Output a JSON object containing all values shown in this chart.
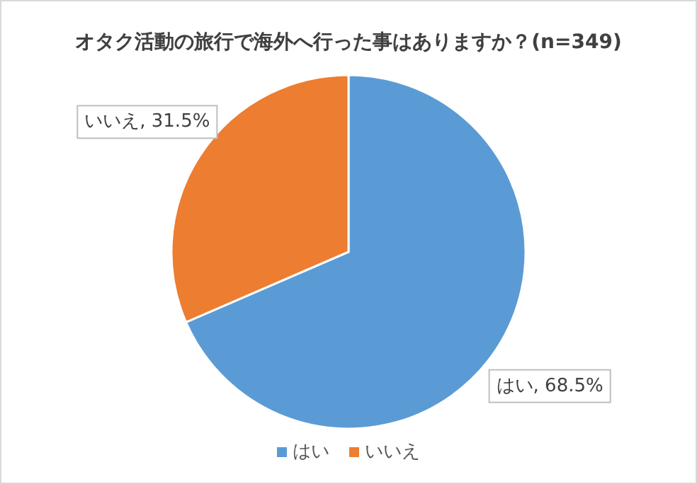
{
  "chart_data": {
    "type": "pie",
    "title": "オタク活動の旅行で海外へ行った事はありますか？(n=349)",
    "categories": [
      "はい",
      "いいえ"
    ],
    "values": [
      68.5,
      31.5
    ],
    "colors": [
      "#5b9bd5",
      "#ed7d31"
    ],
    "value_labels": [
      "はい, 68.5%",
      "いいえ, 31.5%"
    ],
    "legend": "bottom"
  }
}
